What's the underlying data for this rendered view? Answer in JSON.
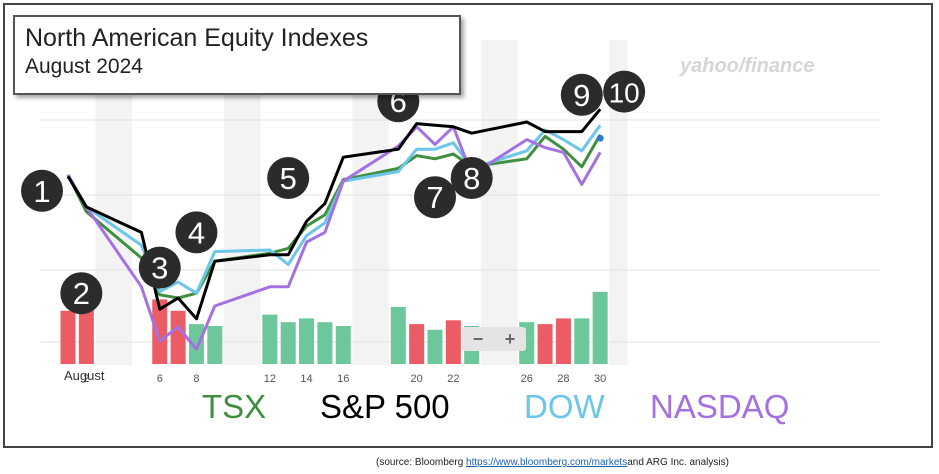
{
  "title": "North American Equity Indexes",
  "subtitle": "August 2024",
  "source": {
    "prefix": "(source: Bloomberg ",
    "link": "https://www.bloomberg.com/markets",
    "suffix": "and ARG Inc. analysis)"
  },
  "watermark": "yahoo/finance",
  "zoom": {
    "minus": "−",
    "plus": "+"
  },
  "legend": [
    {
      "name": "TSX",
      "color": "#3f8f3f"
    },
    {
      "name": "S&P 500",
      "color": "#000000"
    },
    {
      "name": "DOW",
      "color": "#6cc6ea"
    },
    {
      "name": "NASDAQ",
      "color": "#a472e0"
    }
  ],
  "chart_data": {
    "type": "line",
    "x_tick_labels": [
      {
        "day": 2,
        "label": "2"
      },
      {
        "day": 6,
        "label": "6"
      },
      {
        "day": 8,
        "label": "8"
      },
      {
        "day": 12,
        "label": "12"
      },
      {
        "day": 14,
        "label": "14"
      },
      {
        "day": 16,
        "label": "16"
      },
      {
        "day": 20,
        "label": "20"
      },
      {
        "day": 22,
        "label": "22"
      },
      {
        "day": 26,
        "label": "26"
      },
      {
        "day": 28,
        "label": "28"
      },
      {
        "day": 30,
        "label": "30"
      }
    ],
    "month_label": "August",
    "x": [
      1,
      2,
      5,
      6,
      7,
      8,
      9,
      12,
      13,
      14,
      15,
      16,
      19,
      20,
      21,
      22,
      23,
      26,
      27,
      28,
      29,
      30
    ],
    "ylim": [
      0,
      100
    ],
    "series": [
      {
        "name": "S&P 500",
        "color": "#000000",
        "values": [
          60.5,
          51,
          43,
          19,
          22.5,
          16,
          34,
          36,
          36,
          46.5,
          52,
          66.5,
          69,
          77,
          76.5,
          76,
          74,
          77.5,
          74.5,
          74.5,
          74.5,
          81.5
        ]
      },
      {
        "name": "DOW",
        "color": "#6cc6ea",
        "values": [
          61,
          51,
          39,
          24.5,
          27.5,
          24,
          37,
          37.5,
          33,
          42,
          46,
          59,
          62,
          69,
          69,
          71,
          63,
          68.5,
          75,
          72,
          68.5,
          76.5
        ]
      },
      {
        "name": "TSX",
        "color": "#3f8f3f",
        "values": [
          61,
          49.5,
          35,
          23.5,
          22.5,
          24,
          34,
          36.5,
          38,
          45,
          48.5,
          59.5,
          63,
          67,
          66,
          67.5,
          63.5,
          66,
          73,
          69,
          63.5,
          73.5
        ]
      },
      {
        "name": "NASDAQ",
        "color": "#a472e0",
        "values": [
          61,
          51,
          26,
          9,
          13.5,
          6.5,
          20,
          26,
          26,
          40,
          43,
          59,
          70,
          76,
          70.5,
          76,
          61,
          72,
          69.5,
          68,
          58,
          68
        ]
      }
    ],
    "volume": [
      {
        "x": 1,
        "value": 28,
        "color": "#ec5c64"
      },
      {
        "x": 2,
        "value": 32,
        "color": "#ec5c64"
      },
      {
        "x": 6,
        "value": 34,
        "color": "#ec5c64"
      },
      {
        "x": 7,
        "value": 28,
        "color": "#ec5c64"
      },
      {
        "x": 8,
        "value": 21,
        "color": "#6cc79a"
      },
      {
        "x": 9,
        "value": 20,
        "color": "#6cc79a"
      },
      {
        "x": 12,
        "value": 26,
        "color": "#6cc79a"
      },
      {
        "x": 13,
        "value": 22,
        "color": "#6cc79a"
      },
      {
        "x": 14,
        "value": 24,
        "color": "#6cc79a"
      },
      {
        "x": 15,
        "value": 22,
        "color": "#6cc79a"
      },
      {
        "x": 16,
        "value": 20,
        "color": "#6cc79a"
      },
      {
        "x": 19,
        "value": 30,
        "color": "#6cc79a"
      },
      {
        "x": 20,
        "value": 21,
        "color": "#ec5c64"
      },
      {
        "x": 21,
        "value": 18,
        "color": "#6cc79a"
      },
      {
        "x": 22,
        "value": 23,
        "color": "#ec5c64"
      },
      {
        "x": 23,
        "value": 20,
        "color": "#6cc79a"
      },
      {
        "x": 26,
        "value": 22,
        "color": "#6cc79a"
      },
      {
        "x": 27,
        "value": 21,
        "color": "#ec5c64"
      },
      {
        "x": 28,
        "value": 24,
        "color": "#ec5c64"
      },
      {
        "x": 29,
        "value": 24,
        "color": "#6cc79a"
      },
      {
        "x": 30,
        "value": 38,
        "color": "#6cc79a"
      }
    ],
    "annotations": [
      {
        "label": "1",
        "x": 1,
        "value": 56
      },
      {
        "label": "2",
        "x": 2,
        "value": 24
      },
      {
        "label": "3",
        "x": 6,
        "value": 32
      },
      {
        "label": "4",
        "x": 8,
        "value": 43
      },
      {
        "label": "5",
        "x": 13,
        "value": 60
      },
      {
        "label": "6",
        "x": 19,
        "value": 84
      },
      {
        "label": "7",
        "x": 21,
        "value": 54
      },
      {
        "label": "8",
        "x": 23,
        "value": 60
      },
      {
        "label": "9",
        "x": 29,
        "value": 86
      },
      {
        "label": "10",
        "x": 30,
        "value": 87
      }
    ]
  }
}
